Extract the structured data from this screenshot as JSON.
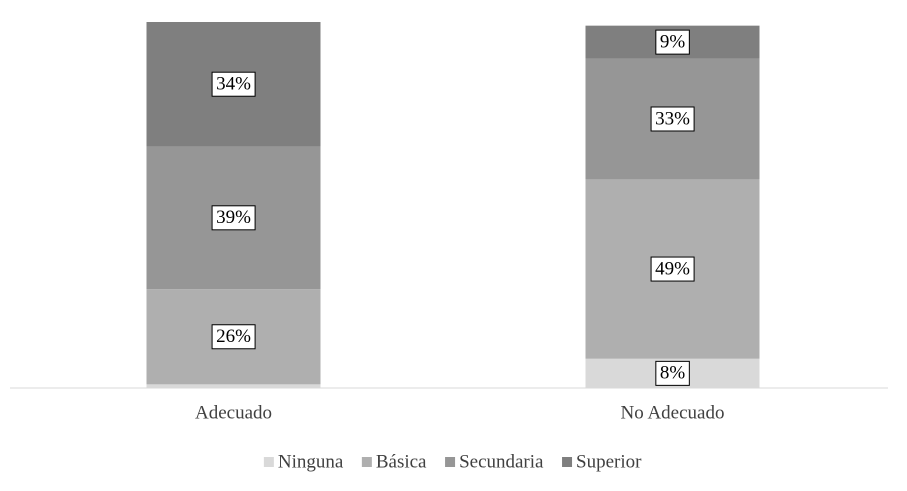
{
  "chart_data": {
    "type": "stacked-bar",
    "categories": [
      "Adecuado",
      "No Adecuado"
    ],
    "series": [
      {
        "name": "Ninguna",
        "color": "#d9d9d9",
        "values": [
          1,
          8
        ],
        "value_labels": [
          null,
          "8%"
        ]
      },
      {
        "name": "Básica",
        "color": "#afafaf",
        "values": [
          26,
          49
        ],
        "value_labels": [
          "26%",
          "49%"
        ]
      },
      {
        "name": "Secundaria",
        "color": "#969696",
        "values": [
          39,
          33
        ],
        "value_labels": [
          "39%",
          "33%"
        ]
      },
      {
        "name": "Superior",
        "color": "#7f7f7f",
        "values": [
          34,
          9
        ],
        "value_labels": [
          "34%",
          "9%"
        ]
      }
    ],
    "ylim": [
      0,
      100
    ]
  }
}
